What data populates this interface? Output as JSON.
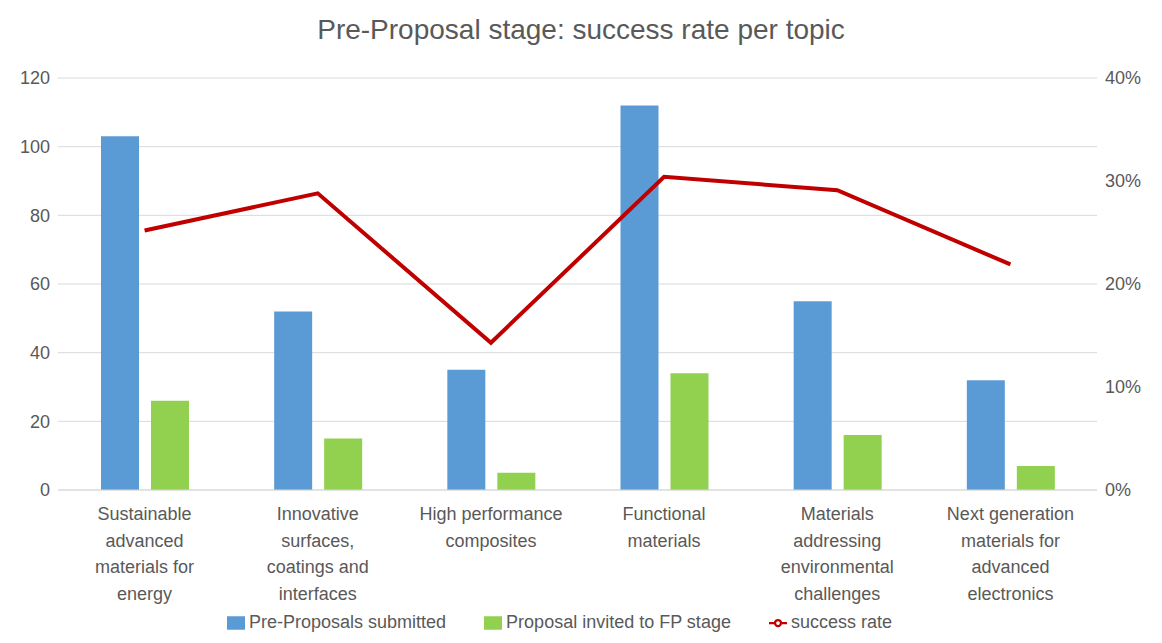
{
  "chart_data": {
    "type": "bar",
    "title": "Pre-Proposal stage: success rate per topic",
    "categories": [
      "Sustainable advanced materials for energy",
      "Innovative surfaces, coatings and interfaces",
      "High performance composites",
      "Functional materials",
      "Materials addressing environmental challenges",
      "Next generation materials for advanced electronics"
    ],
    "series": [
      {
        "name": "Pre-Proposals submitted",
        "type": "bar",
        "color": "#5b9bd5",
        "values": [
          103,
          52,
          35,
          112,
          55,
          32
        ]
      },
      {
        "name": "Proposal invited to FP stage",
        "type": "bar",
        "color": "#92d050",
        "values": [
          26,
          15,
          5,
          34,
          16,
          7
        ]
      },
      {
        "name": "success rate",
        "type": "line",
        "axis": "y2",
        "color": "#c00000",
        "values": [
          25.2,
          28.8,
          14.3,
          30.4,
          29.1,
          21.9
        ]
      }
    ],
    "ylim": [
      0,
      120
    ],
    "yticks": [
      0,
      20,
      40,
      60,
      80,
      100,
      120
    ],
    "y2lim": [
      0,
      40
    ],
    "y2ticks": [
      {
        "value": 0,
        "label": "0%"
      },
      {
        "value": 10,
        "label": "10%"
      },
      {
        "value": 20,
        "label": "20%"
      },
      {
        "value": 30,
        "label": "30%"
      },
      {
        "value": 40,
        "label": "40%"
      }
    ],
    "grid": true,
    "legend": "bottom"
  }
}
